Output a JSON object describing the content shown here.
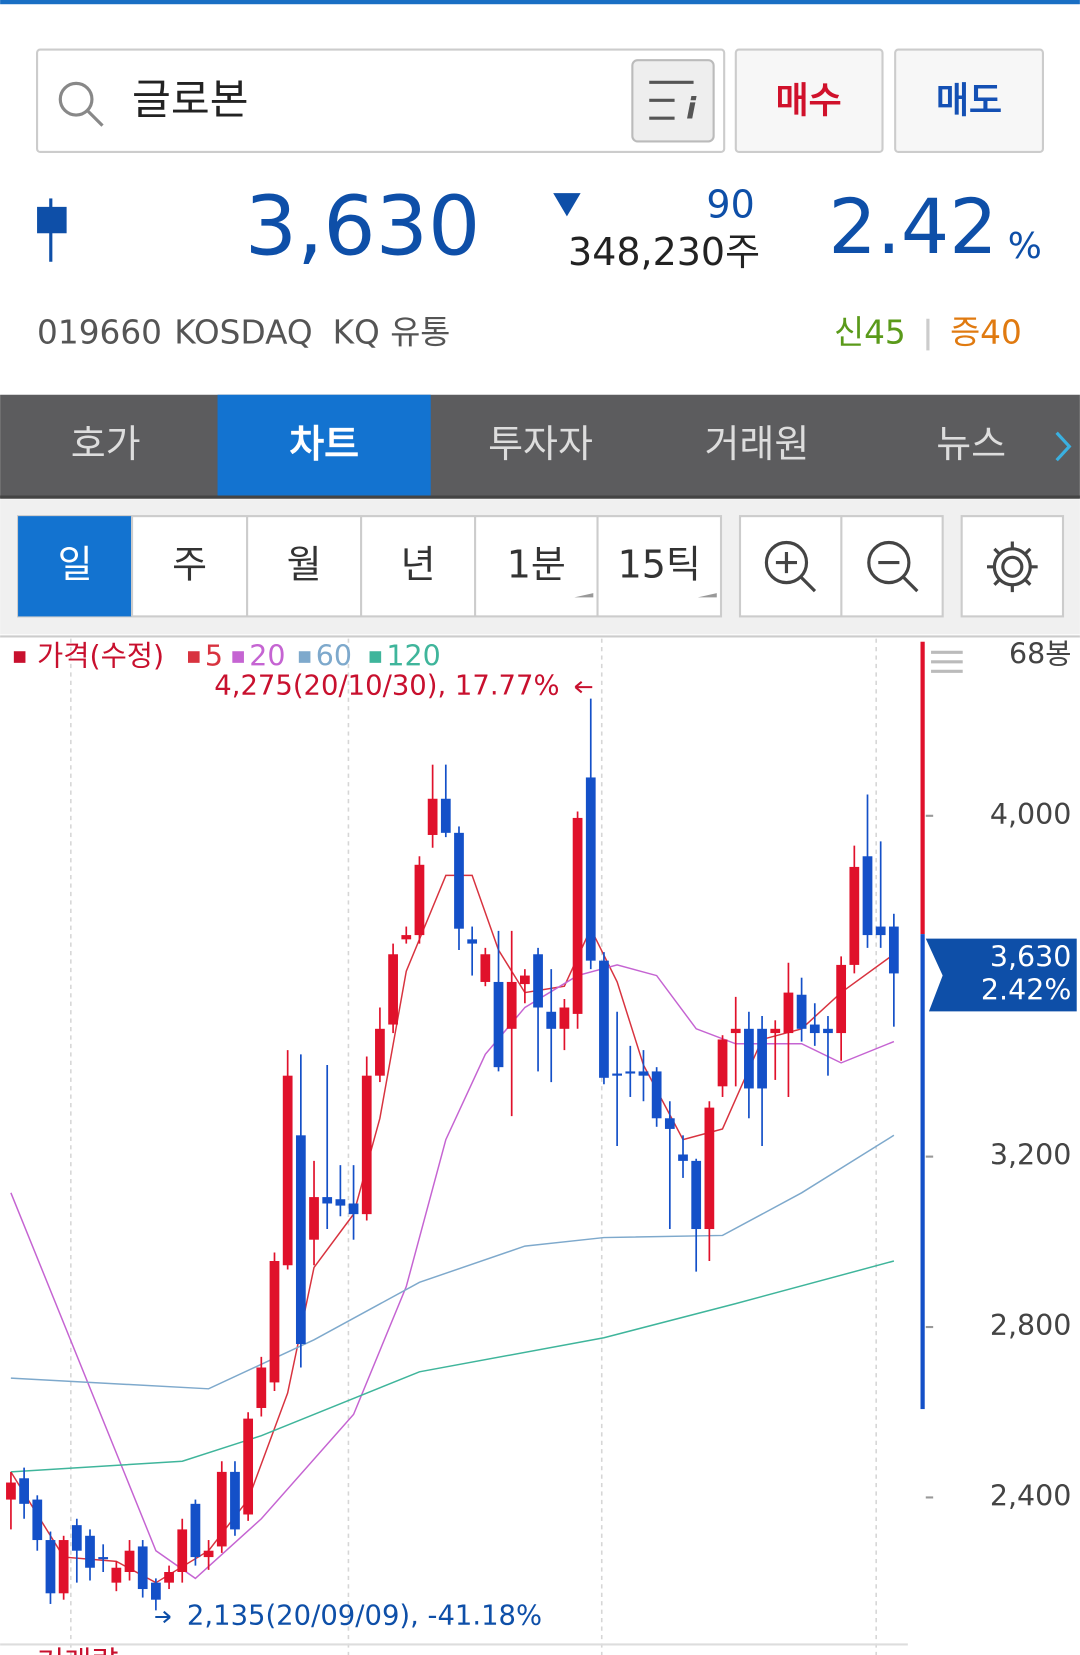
{
  "search": {
    "query": "글로본"
  },
  "buttons": {
    "buy": "매수",
    "sell": "매도"
  },
  "quote": {
    "price": "3,630",
    "change": "90",
    "volume": "348,230주",
    "rate": "2.42",
    "rate_unit": "%"
  },
  "info": {
    "code": "019660",
    "market": "KOSDAQ",
    "sector": "KQ 유통",
    "credit": "신45",
    "margin": "증40"
  },
  "tabs": [
    "호가",
    "차트",
    "투자자",
    "거래원",
    "뉴스"
  ],
  "periods": [
    "일",
    "주",
    "월",
    "년",
    "1분",
    "15틱"
  ],
  "chart_data": {
    "type": "candlestick",
    "price_label": "가격(수정)",
    "bar_count": "68봉",
    "up_color": "#e0112b",
    "down_color": "#1450c8",
    "candles": [
      [
        2395,
        2460,
        2325,
        2435
      ],
      [
        2445,
        2470,
        2350,
        2385
      ],
      [
        2395,
        2405,
        2275,
        2300
      ],
      [
        2300,
        2320,
        2150,
        2175
      ],
      [
        2175,
        2310,
        2160,
        2300
      ],
      [
        2335,
        2350,
        2200,
        2275
      ],
      [
        2310,
        2325,
        2205,
        2235
      ],
      [
        2260,
        2290,
        2225,
        2255
      ],
      [
        2200,
        2250,
        2180,
        2235
      ],
      [
        2225,
        2300,
        2205,
        2275
      ],
      [
        2285,
        2300,
        2165,
        2185
      ],
      [
        2200,
        2210,
        2135,
        2160
      ],
      [
        2200,
        2240,
        2185,
        2225
      ],
      [
        2225,
        2350,
        2200,
        2325
      ],
      [
        2385,
        2395,
        2240,
        2260
      ],
      [
        2260,
        2300,
        2230,
        2275
      ],
      [
        2285,
        2485,
        2270,
        2460
      ],
      [
        2460,
        2485,
        2310,
        2325
      ],
      [
        2360,
        2600,
        2345,
        2585
      ],
      [
        2610,
        2730,
        2590,
        2705
      ],
      [
        2670,
        2975,
        2650,
        2955
      ],
      [
        2945,
        3450,
        2935,
        3390
      ],
      [
        3250,
        3440,
        2705,
        2760
      ],
      [
        3005,
        3190,
        2945,
        3105
      ],
      [
        3105,
        3415,
        3030,
        3090
      ],
      [
        3100,
        3180,
        3060,
        3085
      ],
      [
        3090,
        3180,
        3005,
        3065
      ],
      [
        3065,
        3435,
        3050,
        3390
      ],
      [
        3390,
        3550,
        3375,
        3500
      ],
      [
        3510,
        3700,
        3490,
        3675
      ],
      [
        3710,
        3740,
        3700,
        3720
      ],
      [
        3720,
        3905,
        3700,
        3885
      ],
      [
        3955,
        4120,
        3925,
        4040
      ],
      [
        4040,
        4120,
        3950,
        3960
      ],
      [
        3960,
        3975,
        3685,
        3735
      ],
      [
        3710,
        3740,
        3625,
        3700
      ],
      [
        3610,
        3690,
        3600,
        3675
      ],
      [
        3610,
        3730,
        3400,
        3410
      ],
      [
        3500,
        3730,
        3295,
        3610
      ],
      [
        3605,
        3640,
        3560,
        3625
      ],
      [
        3675,
        3690,
        3400,
        3550
      ],
      [
        3540,
        3640,
        3375,
        3500
      ],
      [
        3500,
        3570,
        3450,
        3550
      ],
      [
        3535,
        4010,
        3500,
        3995
      ],
      [
        4090,
        4275,
        3640,
        3660
      ],
      [
        3660,
        3680,
        3370,
        3385
      ],
      [
        3395,
        3540,
        3225,
        3390
      ],
      [
        3400,
        3460,
        3340,
        3395
      ],
      [
        3400,
        3450,
        3330,
        3390
      ],
      [
        3400,
        3410,
        3270,
        3290
      ],
      [
        3290,
        3330,
        3030,
        3265
      ],
      [
        3205,
        3250,
        3150,
        3190
      ],
      [
        3190,
        3195,
        2930,
        3030
      ],
      [
        3030,
        3330,
        2955,
        3315
      ],
      [
        3365,
        3485,
        3340,
        3475
      ],
      [
        3490,
        3575,
        3365,
        3500
      ],
      [
        3500,
        3540,
        3290,
        3360
      ],
      [
        3500,
        3530,
        3225,
        3360
      ],
      [
        3490,
        3520,
        3380,
        3500
      ],
      [
        3490,
        3655,
        3340,
        3585
      ],
      [
        3580,
        3620,
        3470,
        3500
      ],
      [
        3510,
        3560,
        3460,
        3490
      ],
      [
        3500,
        3530,
        3390,
        3490
      ],
      [
        3490,
        3670,
        3425,
        3650
      ],
      [
        3650,
        3930,
        3630,
        3880
      ],
      [
        3905,
        4050,
        3690,
        3720
      ],
      [
        3740,
        3940,
        3690,
        3720
      ],
      [
        3740,
        3770,
        3505,
        3630
      ]
    ],
    "series": [
      {
        "name": "5",
        "color": "#d8333f",
        "x": [
          0,
          4,
          8,
          11,
          15,
          18,
          21,
          23,
          26,
          28,
          30,
          33,
          35,
          37,
          39,
          42,
          44,
          46,
          48,
          51,
          54,
          57,
          60,
          63,
          67
        ],
        "values": [
          2460,
          2260,
          2250,
          2200,
          2275,
          2395,
          2645,
          2940,
          3065,
          3290,
          3635,
          3860,
          3860,
          3685,
          3585,
          3600,
          3735,
          3610,
          3415,
          3240,
          3265,
          3475,
          3500,
          3585,
          3675
        ]
      },
      {
        "name": "20",
        "color": "#c564d2",
        "x": [
          0,
          11,
          14,
          19,
          26,
          30,
          33,
          36,
          39,
          43,
          46,
          49,
          52,
          55,
          60,
          63,
          67
        ],
        "values": [
          3115,
          2275,
          2210,
          2350,
          2595,
          2895,
          3240,
          3440,
          3550,
          3625,
          3650,
          3625,
          3500,
          3465,
          3465,
          3420,
          3470
        ]
      },
      {
        "name": "60",
        "color": "#7ea9cc",
        "x": [
          0,
          15,
          23,
          31,
          39,
          45,
          54,
          60,
          67
        ],
        "values": [
          2680,
          2655,
          2770,
          2905,
          2990,
          3010,
          3015,
          3115,
          3250
        ]
      },
      {
        "name": "120",
        "color": "#3fb59b",
        "x": [
          0,
          13,
          19,
          31,
          45,
          55,
          67
        ],
        "values": [
          2460,
          2485,
          2545,
          2695,
          2775,
          2855,
          2955
        ]
      }
    ],
    "ylim": [
      2050,
      4416
    ],
    "yticks": [
      {
        "value": 2400,
        "label": "2,400"
      },
      {
        "value": 2800,
        "label": "2,800"
      },
      {
        "value": 3200,
        "label": "3,200"
      },
      {
        "value": 4000,
        "label": "4,000"
      }
    ],
    "high_label": "4,275(20/10/30), 17.77%",
    "low_label": "2,135(20/09/09), -41.18%",
    "last_price_label": "3,630",
    "last_rate_label": "2.42%"
  },
  "volume_label": "거래량"
}
